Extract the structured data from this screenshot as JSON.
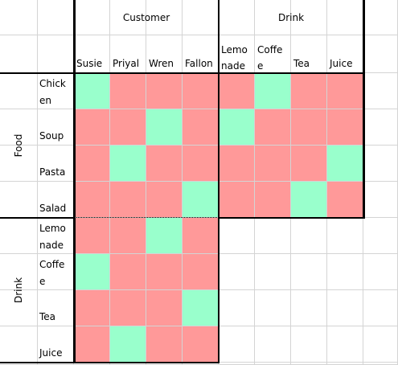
{
  "headers": {
    "customer": "Customer",
    "drink": "Drink"
  },
  "sides": {
    "food": "Food",
    "drink": "Drink"
  },
  "columns": [
    "Susie",
    "Priyal",
    "Wren",
    "Fallon",
    "Lemo\nnade",
    "Coffe\ne",
    "Tea",
    "Juice"
  ],
  "rows": [
    "Chick\nen",
    "Soup",
    "Pasta",
    "Salad",
    "Lemo\nnade",
    "Coffe\ne",
    "Tea",
    "Juice"
  ],
  "grid": [
    "GRRRRGRR",
    "RRGRGRRR",
    "RGRRRRRG",
    "RRRGRRGR",
    "RRGR",
    "GRRR",
    "RRRG",
    "RGRR"
  ]
}
